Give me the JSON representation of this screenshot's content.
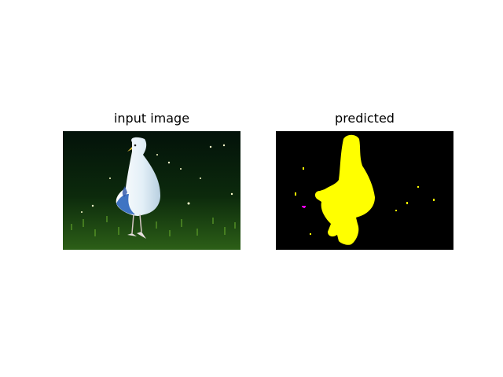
{
  "figure": {
    "panels": [
      {
        "title": "input image"
      },
      {
        "title": "predicted"
      }
    ]
  },
  "colors": {
    "background": "#ffffff",
    "image_dark": "#05140a",
    "grass": "#1f4d12",
    "bird": "#e8f2f8",
    "bird_shadow": "#1e5cb8",
    "mask_fg": "#ffff00",
    "mask_bg": "#000000",
    "mask_noise": "#ff00ff"
  }
}
